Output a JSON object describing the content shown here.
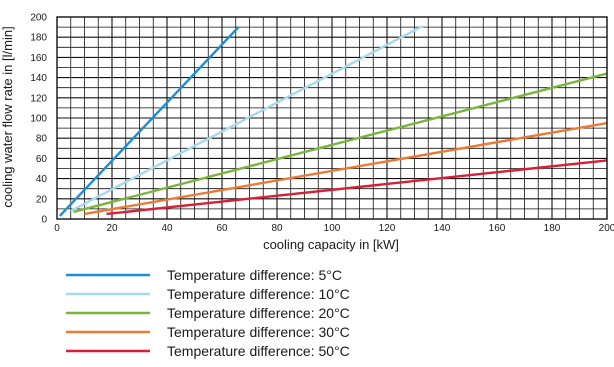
{
  "chart_data": {
    "type": "line",
    "xlabel": "cooling capacity in [kW]",
    "ylabel": "cooling water flow rate in [l/min]",
    "xlim": [
      0,
      200
    ],
    "ylim": [
      0,
      200
    ],
    "x_ticks": [
      "0",
      "20",
      "40",
      "60",
      "80",
      "100",
      "120",
      "140",
      "160",
      "180",
      "200"
    ],
    "y_ticks": [
      "0",
      "20",
      "40",
      "60",
      "80",
      "100",
      "120",
      "140",
      "160",
      "180",
      "200"
    ],
    "grid": true,
    "legend_position": "below",
    "series": [
      {
        "name": "Temperature difference: 5°C",
        "color": "#1a8fd6",
        "x": [
          1,
          66
        ],
        "y": [
          3,
          190
        ]
      },
      {
        "name": "Temperature difference: 10°C",
        "color": "#a8d8ee",
        "x": [
          5,
          133
        ],
        "y": [
          8,
          191
        ]
      },
      {
        "name": "Temperature difference: 20°C",
        "color": "#7ab63c",
        "x": [
          6,
          200
        ],
        "y": [
          7,
          144
        ]
      },
      {
        "name": "Temperature difference: 30°C",
        "color": "#ec7a35",
        "x": [
          10,
          200
        ],
        "y": [
          5,
          95
        ]
      },
      {
        "name": "Temperature difference: 50°C",
        "color": "#d81f38",
        "x": [
          18,
          200
        ],
        "y": [
          5,
          58
        ]
      }
    ]
  }
}
